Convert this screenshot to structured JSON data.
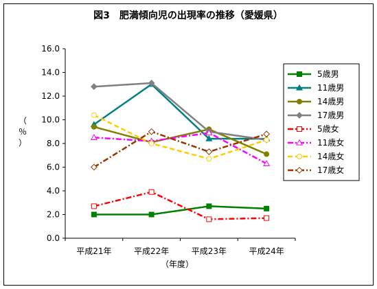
{
  "chart_data": {
    "type": "line",
    "title": "図3　肥満傾向児の出現率の推移（愛媛県）",
    "xlabel": "（年度）",
    "ylabel": "（％）",
    "categories": [
      "平成21年",
      "平成22年",
      "平成23年",
      "平成24年"
    ],
    "ylim": [
      0,
      16
    ],
    "yticks": [
      "0.0",
      "2.0",
      "4.0",
      "6.0",
      "8.0",
      "10.0",
      "12.0",
      "14.0",
      "16.0"
    ],
    "ytick_values": [
      0,
      2,
      4,
      6,
      8,
      10,
      12,
      14,
      16
    ],
    "grid": false,
    "legend_position": "right",
    "series": [
      {
        "name": "5歳男",
        "values": [
          2.0,
          2.0,
          2.7,
          2.5
        ],
        "color": "#008000",
        "dash": "solid",
        "marker": "square-filled"
      },
      {
        "name": "11歳男",
        "values": [
          9.6,
          13.0,
          8.4,
          8.4
        ],
        "color": "#008080",
        "dash": "solid",
        "marker": "triangle-filled"
      },
      {
        "name": "14歳男",
        "values": [
          9.4,
          8.1,
          9.2,
          7.1
        ],
        "color": "#808000",
        "dash": "solid",
        "marker": "circle-filled"
      },
      {
        "name": "17歳男",
        "values": [
          12.8,
          13.1,
          9.0,
          8.3
        ],
        "color": "#808080",
        "dash": "solid",
        "marker": "diamond-filled"
      },
      {
        "name": "5歳女",
        "values": [
          2.7,
          3.9,
          1.6,
          1.7
        ],
        "color": "#ff0000",
        "dash": "dashdot",
        "marker": "square-open"
      },
      {
        "name": "11歳女",
        "values": [
          8.5,
          8.2,
          8.9,
          6.3
        ],
        "color": "#ff00ff",
        "dash": "dashdot",
        "marker": "triangle-open"
      },
      {
        "name": "14歳女",
        "values": [
          10.4,
          8.0,
          6.7,
          8.3
        ],
        "color": "#ffcc00",
        "dash": "dash",
        "marker": "circle-open"
      },
      {
        "name": "17歳女",
        "values": [
          6.0,
          9.0,
          7.3,
          8.8
        ],
        "color": "#993300",
        "dash": "dashdot",
        "marker": "diamond-open"
      }
    ]
  }
}
